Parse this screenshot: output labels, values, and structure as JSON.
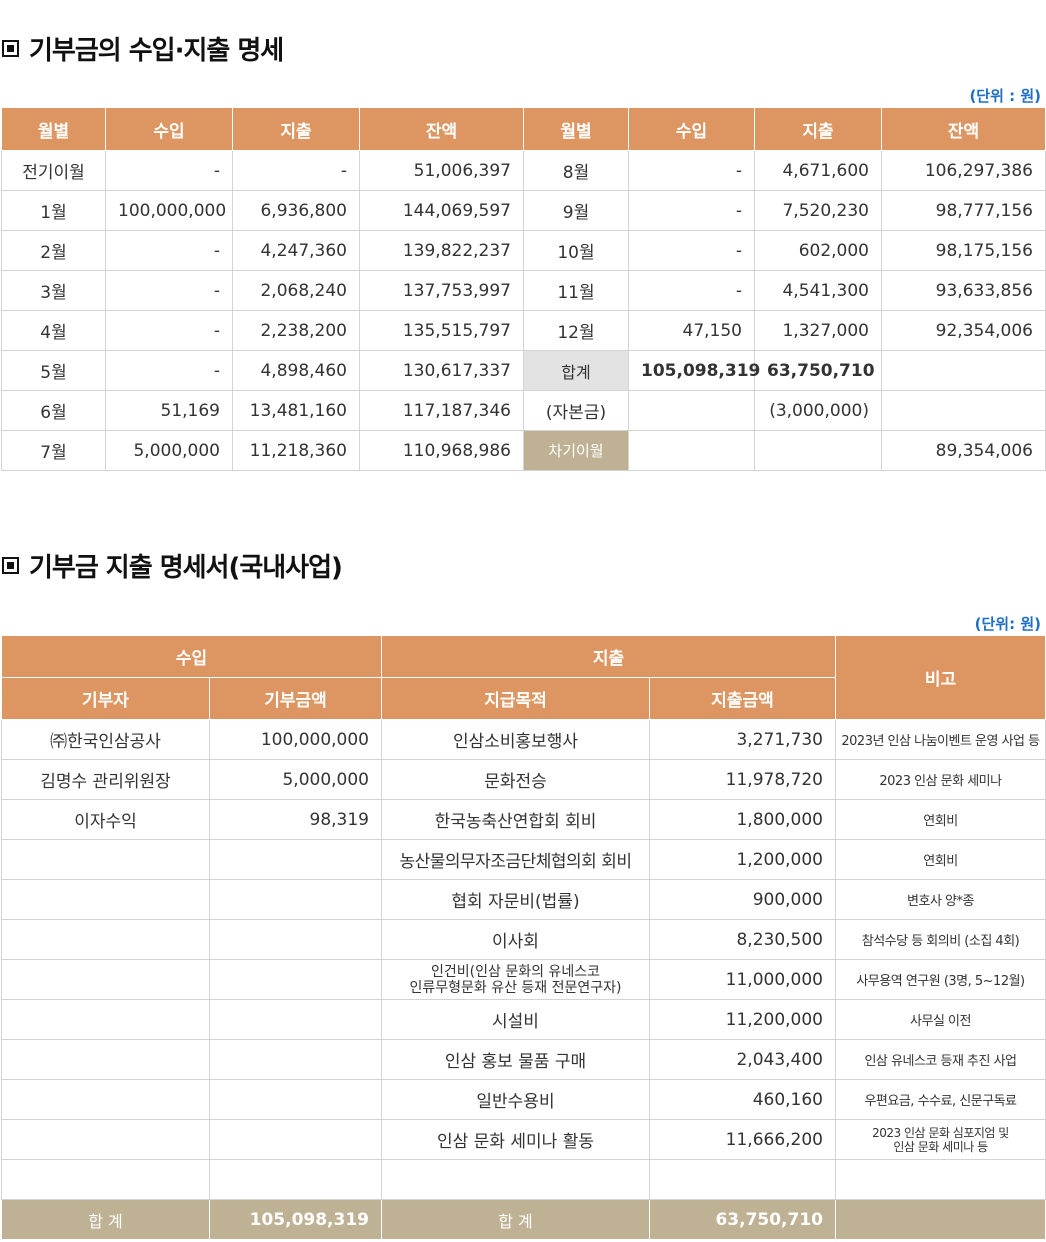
{
  "section1": {
    "title": "기부금의 수입·지출 명세",
    "unit": "(단위 :  원)",
    "headers": [
      "월별",
      "수입",
      "지출",
      "잔액",
      "월별",
      "수입",
      "지출",
      "잔액"
    ],
    "rows": [
      [
        "전기이월",
        "-",
        "-",
        "51,006,397",
        "8월",
        "-",
        "4,671,600",
        "106,297,386"
      ],
      [
        "1월",
        "100,000,000",
        "6,936,800",
        "144,069,597",
        "9월",
        "-",
        "7,520,230",
        "98,777,156"
      ],
      [
        "2월",
        "-",
        "4,247,360",
        "139,822,237",
        "10월",
        "-",
        "602,000",
        "98,175,156"
      ],
      [
        "3월",
        "-",
        "2,068,240",
        "137,753,997",
        "11월",
        "-",
        "4,541,300",
        "93,633,856"
      ],
      [
        "4월",
        "-",
        "2,238,200",
        "135,515,797",
        "12월",
        "47,150",
        "1,327,000",
        "92,354,006"
      ],
      [
        "5월",
        "-",
        "4,898,460",
        "130,617,337",
        "합계",
        "105,098,319",
        "63,750,710",
        ""
      ],
      [
        "6월",
        "51,169",
        "13,481,160",
        "117,187,346",
        "(자본금)",
        "",
        "(3,000,000)",
        ""
      ],
      [
        "7월",
        "5,000,000",
        "11,218,360",
        "110,968,986",
        "차기이월",
        "",
        "",
        "89,354,006"
      ]
    ]
  },
  "section2": {
    "title": "기부금 지출 명세서(국내사업)",
    "unit": "(단위:  원)",
    "group_headers": {
      "income": "수입",
      "expense": "지출",
      "note": "비고"
    },
    "sub_headers": [
      "기부자",
      "기부금액",
      "지급목적",
      "지출금액"
    ],
    "rows": [
      {
        "donor": "㈜한국인삼공사",
        "donation": "100,000,000",
        "purpose": "인삼소비홍보행사",
        "amount": "3,271,730",
        "note": "2023년 인삼 나눔이벤트 운영 사업 등"
      },
      {
        "donor": "김명수 관리위원장",
        "donation": "5,000,000",
        "purpose": "문화전승",
        "amount": "11,978,720",
        "note": "2023 인삼 문화 세미나"
      },
      {
        "donor": "이자수익",
        "donation": "98,319",
        "purpose": "한국농축산연합회 회비",
        "amount": "1,800,000",
        "note": "연회비"
      },
      {
        "donor": "",
        "donation": "",
        "purpose": "농산물의무자조금단체협의회 회비",
        "amount": "1,200,000",
        "note": "연회비"
      },
      {
        "donor": "",
        "donation": "",
        "purpose": "협회 자문비(법률)",
        "amount": "900,000",
        "note": "변호사 양*종"
      },
      {
        "donor": "",
        "donation": "",
        "purpose": "이사회",
        "amount": "8,230,500",
        "note": "참석수당 등 회의비 (소집 4회)"
      },
      {
        "donor": "",
        "donation": "",
        "purpose": "인건비(인삼 문화의 유네스코\n인류무형문화 유산 등재 전문연구자)",
        "amount": "11,000,000",
        "note": "사무용역 연구원 (3명, 5~12월)"
      },
      {
        "donor": "",
        "donation": "",
        "purpose": "시설비",
        "amount": "11,200,000",
        "note": "사무실 이전"
      },
      {
        "donor": "",
        "donation": "",
        "purpose": "인삼 홍보 물품 구매",
        "amount": "2,043,400",
        "note": "인삼 유네스코 등재 추진 사업"
      },
      {
        "donor": "",
        "donation": "",
        "purpose": "일반수용비",
        "amount": "460,160",
        "note": "우편요금, 수수료, 신문구독료"
      },
      {
        "donor": "",
        "donation": "",
        "purpose": "인삼 문화 세미나 활동",
        "amount": "11,666,200",
        "note": "2023 인삼 문화 심포지엄 및\n인삼 문화 세미나 등"
      },
      {
        "donor": "",
        "donation": "",
        "purpose": "",
        "amount": "",
        "note": ""
      }
    ],
    "total": {
      "label1": "합 계",
      "donation": "105,098,319",
      "label2": "합 계",
      "amount": "63,750,710",
      "note": ""
    }
  }
}
